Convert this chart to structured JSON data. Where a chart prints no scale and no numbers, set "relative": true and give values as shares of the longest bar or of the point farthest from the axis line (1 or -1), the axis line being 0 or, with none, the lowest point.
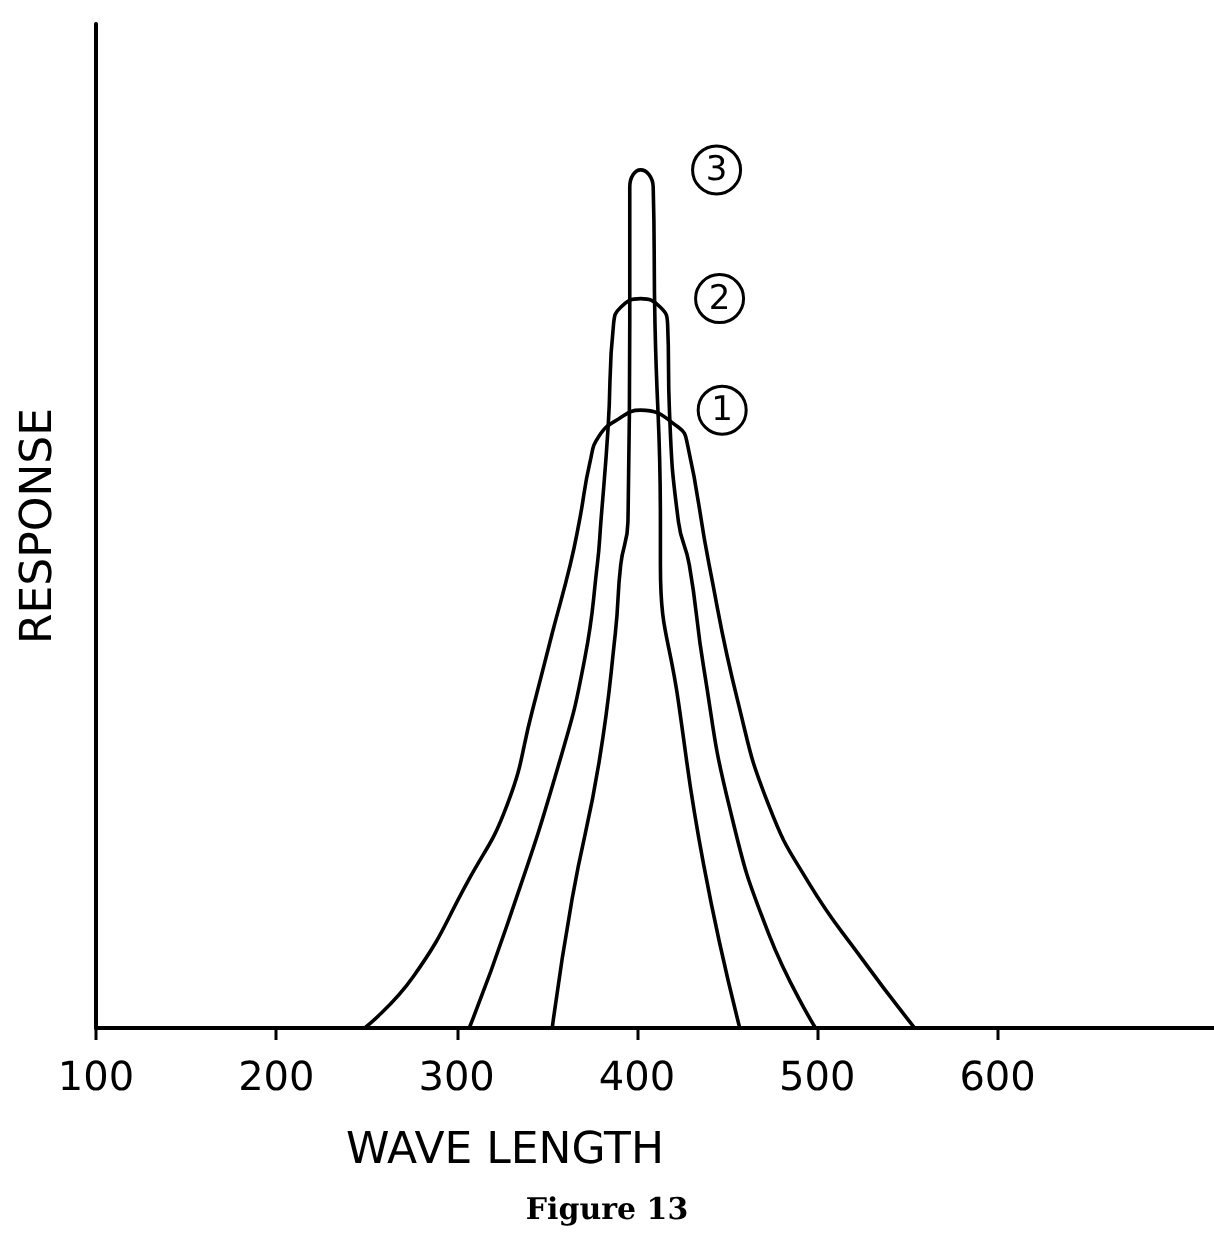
{
  "chart_data": {
    "type": "line",
    "title": "Figure 13",
    "xlabel": "WAVE LENGTH",
    "ylabel": "RESPONSE",
    "relative": true,
    "xlim": [
      100,
      720
    ],
    "xticks": [
      100,
      200,
      300,
      400,
      500,
      600
    ],
    "grid": false,
    "legend": false,
    "marker": "none",
    "line_style": "solid",
    "series": [
      {
        "name": "1",
        "color": "#000000",
        "x": [
          249,
          276,
          306,
          328,
          342,
          353,
          363,
          368,
          374,
          379,
          390,
          402,
          423,
          428,
          440,
          456,
          473,
          495,
          525,
          554
        ],
        "values": [
          0,
          0.06,
          0.17,
          0.26,
          0.37,
          0.46,
          0.54,
          0.59,
          0.66,
          0.69,
          0.71,
          0.72,
          0.7,
          0.68,
          0.54,
          0.38,
          0.26,
          0.17,
          0.08,
          0
        ]
      },
      {
        "name": "2",
        "color": "#000000",
        "x": [
          307,
          328,
          357,
          371,
          378,
          380,
          384,
          387,
          391,
          402,
          413,
          417,
          418,
          423,
          429,
          437,
          451,
          473,
          499
        ],
        "values": [
          0,
          0.12,
          0.31,
          0.43,
          0.54,
          0.59,
          0.7,
          0.82,
          0.84,
          0.85,
          0.84,
          0.82,
          0.72,
          0.59,
          0.54,
          0.42,
          0.26,
          0.11,
          0
        ]
      },
      {
        "name": "3",
        "color": "#000000",
        "x": [
          353,
          364,
          379,
          388,
          391,
          395,
          396,
          396,
          402,
          409,
          410,
          413,
          413,
          423,
          437,
          457
        ],
        "values": [
          0,
          0.15,
          0.31,
          0.46,
          0.54,
          0.59,
          0.82,
          0.98,
          1,
          0.98,
          0.82,
          0.59,
          0.54,
          0.38,
          0.19,
          0
        ]
      }
    ]
  }
}
